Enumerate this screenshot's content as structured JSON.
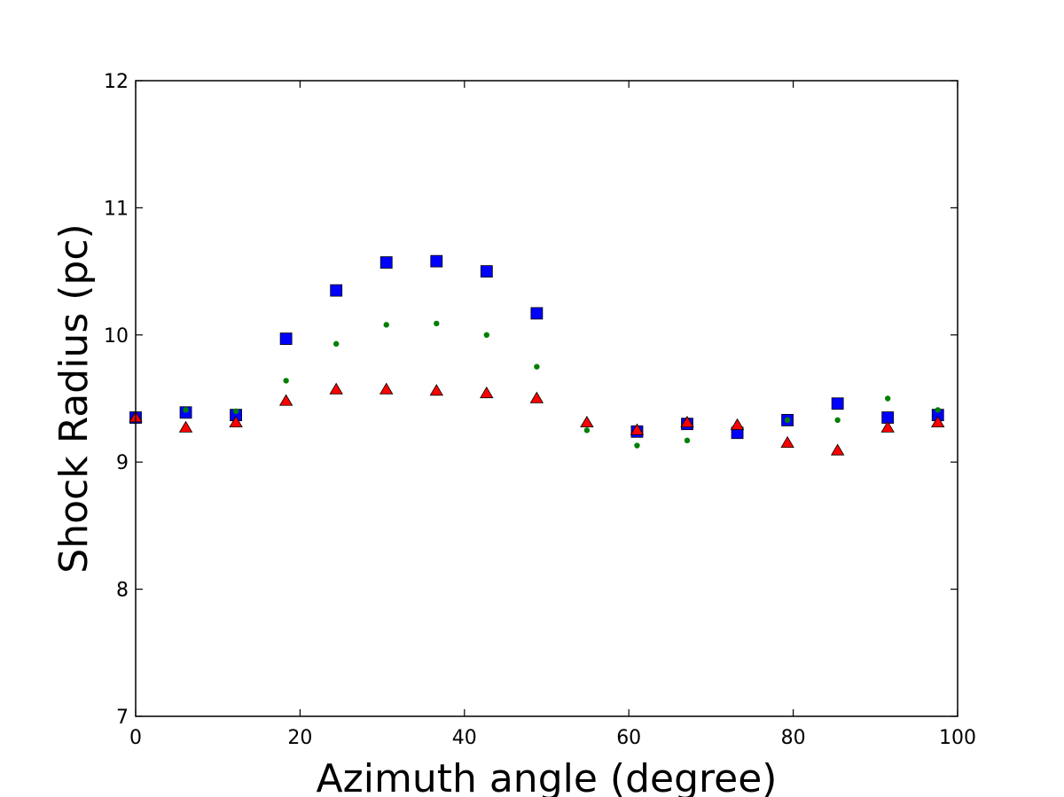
{
  "chart_data": {
    "type": "scatter",
    "title": "",
    "xlabel": "Azimuth angle (degree)",
    "ylabel": "Shock Radius (pc)",
    "xlim": [
      0,
      100
    ],
    "ylim": [
      7,
      12
    ],
    "xticks": [
      0,
      20,
      40,
      60,
      80,
      100
    ],
    "yticks": [
      7,
      8,
      9,
      10,
      11,
      12
    ],
    "grid": false,
    "legend": "none",
    "series": [
      {
        "marker": "square",
        "color": "#0000ff",
        "x": [
          0,
          6.1,
          12.2,
          18.3,
          24.4,
          30.5,
          36.6,
          42.7,
          48.8,
          61.0,
          67.1,
          73.2,
          79.3,
          85.4,
          91.5,
          97.6
        ],
        "y": [
          9.35,
          9.39,
          9.37,
          9.97,
          10.35,
          10.57,
          10.58,
          10.5,
          10.17,
          9.24,
          9.3,
          9.23,
          9.33,
          9.46,
          9.35,
          9.37
        ]
      },
      {
        "marker": "circle",
        "color": "#008000",
        "x": [
          0,
          6.1,
          12.2,
          18.3,
          24.4,
          30.5,
          36.6,
          42.7,
          48.8,
          54.9,
          61.0,
          67.1,
          73.2,
          79.3,
          85.4,
          91.5,
          97.6
        ],
        "y": [
          9.34,
          9.41,
          9.4,
          9.64,
          9.93,
          10.08,
          10.09,
          10.0,
          9.75,
          9.25,
          9.13,
          9.17,
          9.3,
          9.33,
          9.33,
          9.5,
          9.41
        ]
      },
      {
        "marker": "triangle",
        "color": "#ff0000",
        "x": [
          0,
          6.1,
          12.2,
          18.3,
          24.4,
          30.5,
          36.6,
          42.7,
          48.8,
          54.9,
          61.0,
          67.1,
          73.2,
          79.3,
          85.4,
          91.5,
          97.6
        ],
        "y": [
          9.35,
          9.27,
          9.31,
          9.48,
          9.57,
          9.57,
          9.56,
          9.54,
          9.5,
          9.31,
          9.25,
          9.31,
          9.29,
          9.15,
          9.09,
          9.27,
          9.31
        ]
      }
    ]
  }
}
